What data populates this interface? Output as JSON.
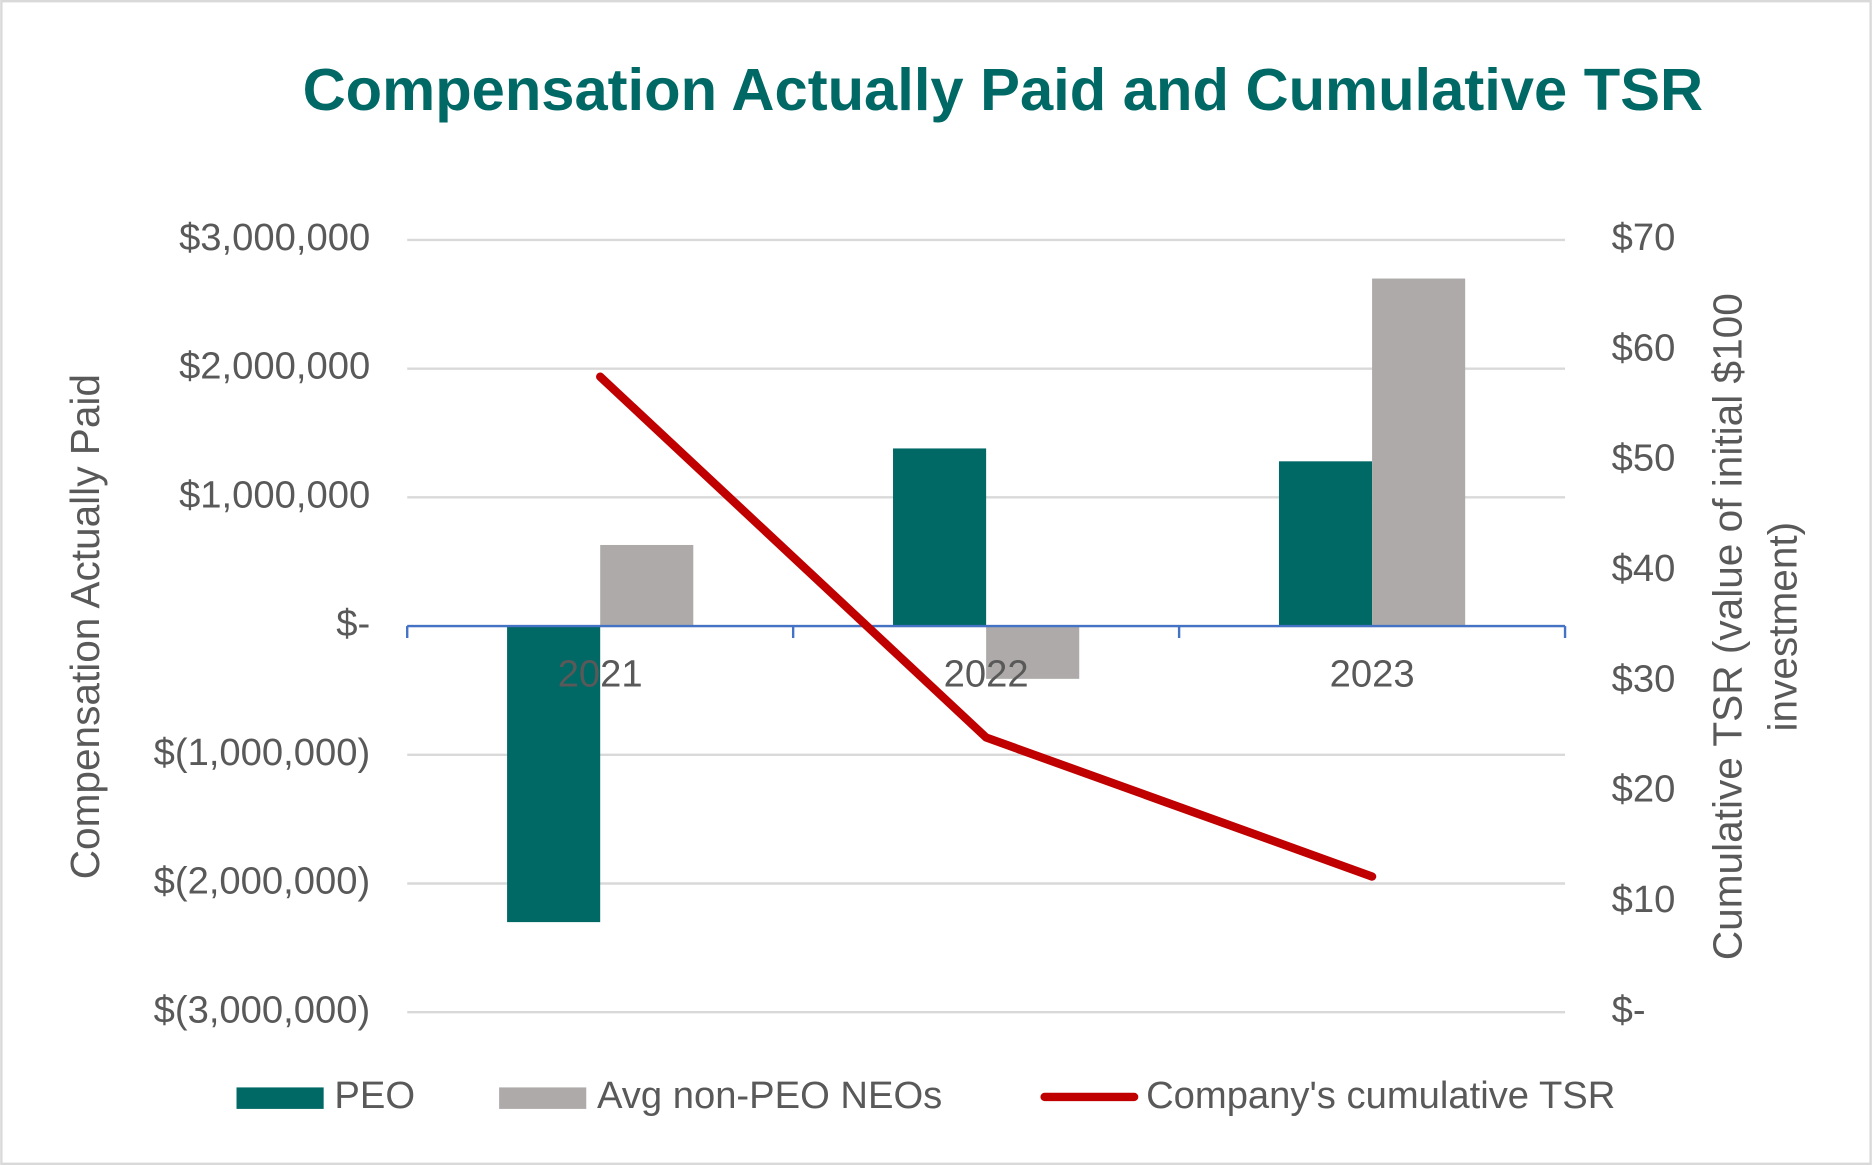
{
  "chart_data": {
    "type": "bar",
    "title": "Compensation Actually Paid and Cumulative TSR",
    "y_label": "Compensation Actually Paid",
    "y2_label": "Cumulative TSR (value of initial $100 investment)",
    "categories": [
      "2021",
      "2022",
      "2023"
    ],
    "series": [
      {
        "name": "PEO",
        "color": "#006865",
        "values": [
          -2300000,
          1380000,
          1280000
        ]
      },
      {
        "name": "Avg non-PEO NEOs",
        "color": "#aeaaaa",
        "values": [
          630000,
          -410000,
          2700000
        ]
      },
      {
        "name": "Company's cumulative TSR",
        "color": "#c00000",
        "type": "line",
        "axis": "y2",
        "values": [
          57.6,
          24.9,
          12.3
        ]
      }
    ],
    "ylim": [
      -3000000,
      3000000
    ],
    "yticks": [
      {
        "value": -3000000,
        "label": "$(3,000,000)"
      },
      {
        "value": -2000000,
        "label": "$(2,000,000)"
      },
      {
        "value": -1000000,
        "label": "$(1,000,000)"
      },
      {
        "value": 0,
        "label": "$-"
      },
      {
        "value": 1000000,
        "label": "$1,000,000"
      },
      {
        "value": 2000000,
        "label": "$2,000,000"
      },
      {
        "value": 3000000,
        "label": "$3,000,000"
      }
    ],
    "y2lim": [
      0,
      70
    ],
    "y2ticks": [
      {
        "value": 0,
        "label": "$-"
      },
      {
        "value": 10,
        "label": "$10"
      },
      {
        "value": 20,
        "label": "$20"
      },
      {
        "value": 30,
        "label": "$30"
      },
      {
        "value": 40,
        "label": "$40"
      },
      {
        "value": 50,
        "label": "$50"
      },
      {
        "value": 60,
        "label": "$60"
      },
      {
        "value": 70,
        "label": "$70"
      }
    ],
    "grid": true,
    "legend": "bottom"
  }
}
